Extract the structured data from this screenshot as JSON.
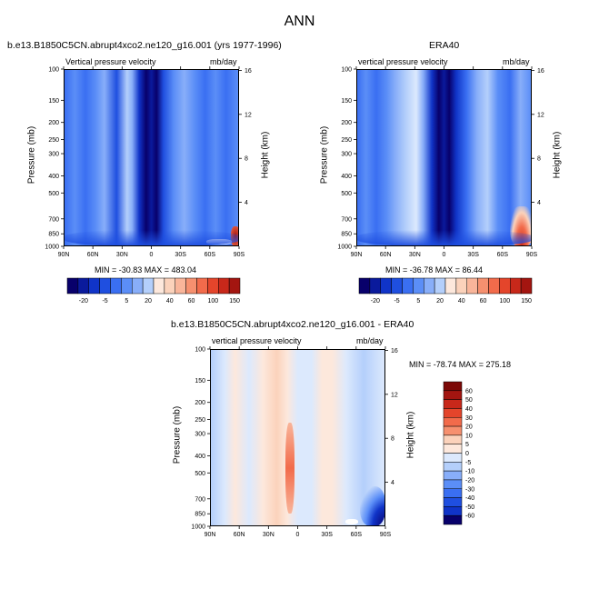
{
  "main_title": "ANN",
  "colors": {
    "cool_scale": [
      "#08006b",
      "#0a1a9c",
      "#1034c8",
      "#1f4fe0",
      "#3a6ff2",
      "#5b8ef7",
      "#88aef9",
      "#b4cffb",
      "#dce9fd"
    ],
    "warm_scale": [
      "#fde8dc",
      "#fbd2bb",
      "#f9b59a",
      "#f6906f",
      "#f26b4b",
      "#e4452b",
      "#c8281a",
      "#a31510",
      "#7c0806"
    ],
    "white": "#ffffff"
  },
  "panels": {
    "model": {
      "title": "b.e13.B1850C5CN.abrupt4xco2.ne120_g16.001 (yrs 1977-1996)",
      "left_string": "Vertical pressure velocity",
      "right_string": "mb/day",
      "ylabel": "Pressure (mb)",
      "ylabel_right": "Height (km)",
      "stats": "MIN = -30.83  MAX = 483.04"
    },
    "obs": {
      "title": "ERA40",
      "left_string": "vertical pressure velocity",
      "right_string": "mb/day",
      "ylabel": "Pressure (mb)",
      "ylabel_right": "Height (km)",
      "stats": "MIN = -36.78  MAX =  86.44"
    },
    "diff": {
      "title": "b.e13.B1850C5CN.abrupt4xco2.ne120_g16.001 - ERA40",
      "left_string": "vertical pressure velocity",
      "right_string": "mb/day",
      "ylabel": "Pressure (mb)",
      "ylabel_right": "Height (km)",
      "stats": "MIN = -78.74  MAX = 275.18"
    }
  },
  "chart_data": [
    {
      "type": "heatmap",
      "panel": "model",
      "x_ticks": [
        "90N",
        "60N",
        "30N",
        "0",
        "30S",
        "60S",
        "90S"
      ],
      "y_ticks": [
        "100",
        "150",
        "200",
        "250",
        "300",
        "400",
        "500",
        "700",
        "850",
        "1000"
      ],
      "y_ticks_right": [
        "16",
        "12",
        "8",
        "4"
      ],
      "pressure_levels": [
        100,
        150,
        200,
        250,
        300,
        400,
        500,
        700,
        850,
        1000
      ],
      "y_scale": "log",
      "zmin": -30.83,
      "zmax": 483.04
    },
    {
      "type": "heatmap",
      "panel": "obs",
      "x_ticks": [
        "90N",
        "60N",
        "30N",
        "0",
        "30S",
        "60S",
        "90S"
      ],
      "y_ticks": [
        "100",
        "150",
        "200",
        "250",
        "300",
        "400",
        "500",
        "700",
        "850",
        "1000"
      ],
      "y_ticks_right": [
        "16",
        "12",
        "8",
        "4"
      ],
      "pressure_levels": [
        100,
        150,
        200,
        250,
        300,
        400,
        500,
        700,
        850,
        1000
      ],
      "y_scale": "log",
      "zmin": -36.78,
      "zmax": 86.44
    },
    {
      "type": "heatmap",
      "panel": "diff",
      "x_ticks": [
        "90N",
        "60N",
        "30N",
        "0",
        "30S",
        "60S",
        "90S"
      ],
      "y_ticks": [
        "100",
        "150",
        "200",
        "250",
        "300",
        "400",
        "500",
        "700",
        "850",
        "1000"
      ],
      "y_ticks_right": [
        "16",
        "12",
        "8",
        "4"
      ],
      "pressure_levels": [
        100,
        150,
        200,
        250,
        300,
        400,
        500,
        700,
        850,
        1000
      ],
      "y_scale": "log",
      "zmin": -78.74,
      "zmax": 275.18
    }
  ],
  "colorbars": {
    "horizontal_labels": [
      "-20",
      "-5",
      "5",
      "20",
      "40",
      "60",
      "100",
      "150"
    ],
    "diff_labels": [
      "60",
      "50",
      "40",
      "30",
      "20",
      "10",
      "5",
      "0",
      "-5",
      "-10",
      "-20",
      "-30",
      "-40",
      "-50",
      "-60"
    ]
  }
}
